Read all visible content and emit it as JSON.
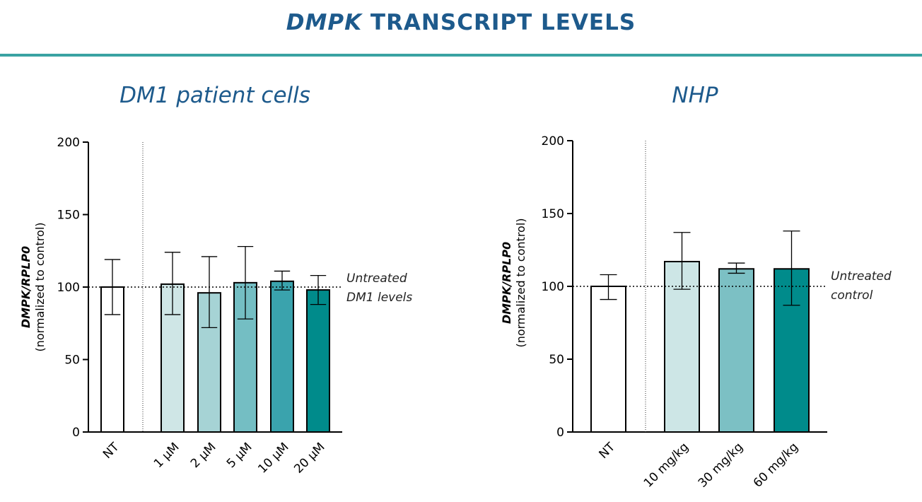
{
  "header": {
    "title_italic": "DMPK",
    "title_rest": " TRANSCRIPT LEVELS",
    "rule_color": "#3aa3a3",
    "title_color": "#1d5a8c"
  },
  "chart_data": [
    {
      "type": "bar",
      "title": "DM1 patient cells",
      "ylabel_line1": "DMPK/RPLP0",
      "ylabel_line2": "(normalized to control)",
      "categories": [
        "NT",
        "1 µM",
        "2 µM",
        "5 µM",
        "10 µM",
        "20 µM"
      ],
      "values": [
        100,
        102,
        96,
        103,
        104,
        98
      ],
      "error_low": [
        81,
        81,
        72,
        78,
        98,
        88
      ],
      "error_high": [
        119,
        124,
        121,
        128,
        111,
        108
      ],
      "colors": [
        "#ffffff",
        "#cfe6e6",
        "#a6d3d5",
        "#74bec3",
        "#3aa3ad",
        "#008b8b"
      ],
      "ylim": [
        0,
        200
      ],
      "yticks": [
        0,
        50,
        100,
        150,
        200
      ],
      "reference_line": 100,
      "reference_label_lines": [
        "Untreated",
        "DM1 levels"
      ],
      "divider_after_index": 0,
      "grid": false
    },
    {
      "type": "bar",
      "title": "NHP",
      "ylabel_line1": "DMPK/RPLP0",
      "ylabel_line2": "(normalized to control)",
      "categories": [
        "NT",
        "10 mg/kg",
        "30 mg/kg",
        "60 mg/kg"
      ],
      "values": [
        100,
        117,
        112,
        112
      ],
      "error_low": [
        91,
        98,
        109,
        87
      ],
      "error_high": [
        108,
        137,
        116,
        138
      ],
      "colors": [
        "#ffffff",
        "#cde6e6",
        "#7cc0c4",
        "#008b8b"
      ],
      "ylim": [
        0,
        200
      ],
      "yticks": [
        0,
        50,
        100,
        150,
        200
      ],
      "reference_line": 100,
      "reference_label_lines": [
        "Untreated",
        "control"
      ],
      "divider_after_index": 0,
      "grid": false
    }
  ]
}
